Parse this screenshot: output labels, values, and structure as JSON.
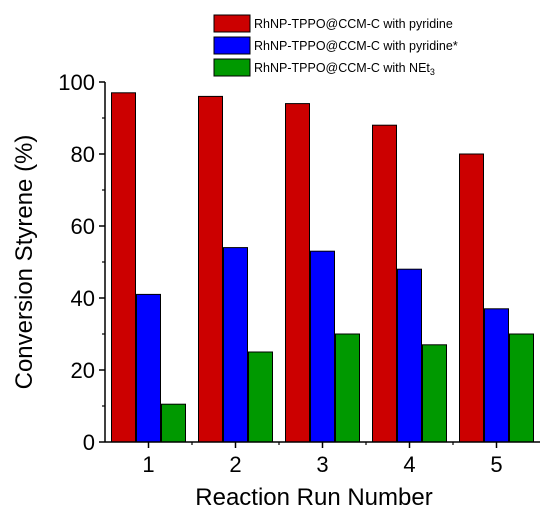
{
  "chart_data": {
    "type": "bar",
    "categories": [
      "1",
      "2",
      "3",
      "4",
      "5"
    ],
    "series": [
      {
        "name": "RhNP-TPPO@CCM-C with pyridine",
        "color": "#cc0000",
        "values": [
          97,
          96,
          94,
          88,
          80
        ]
      },
      {
        "name": "RhNP-TPPO@CCM-C with pyridine*",
        "color": "#0000ff",
        "values": [
          41,
          54,
          53,
          48,
          37
        ]
      },
      {
        "name_prefix": "RhNP-TPPO@CCM-C with NEt",
        "name_subscript": "3",
        "color": "#009900",
        "values": [
          10.5,
          25,
          30,
          27,
          30
        ]
      }
    ],
    "xlabel": "Reaction Run Number",
    "ylabel": "Conversion Styrene (%)",
    "ylim": [
      0,
      100
    ],
    "yticks": [
      "0",
      "20",
      "40",
      "60",
      "80",
      "100"
    ],
    "grid": false,
    "legend_position": "top-right"
  }
}
